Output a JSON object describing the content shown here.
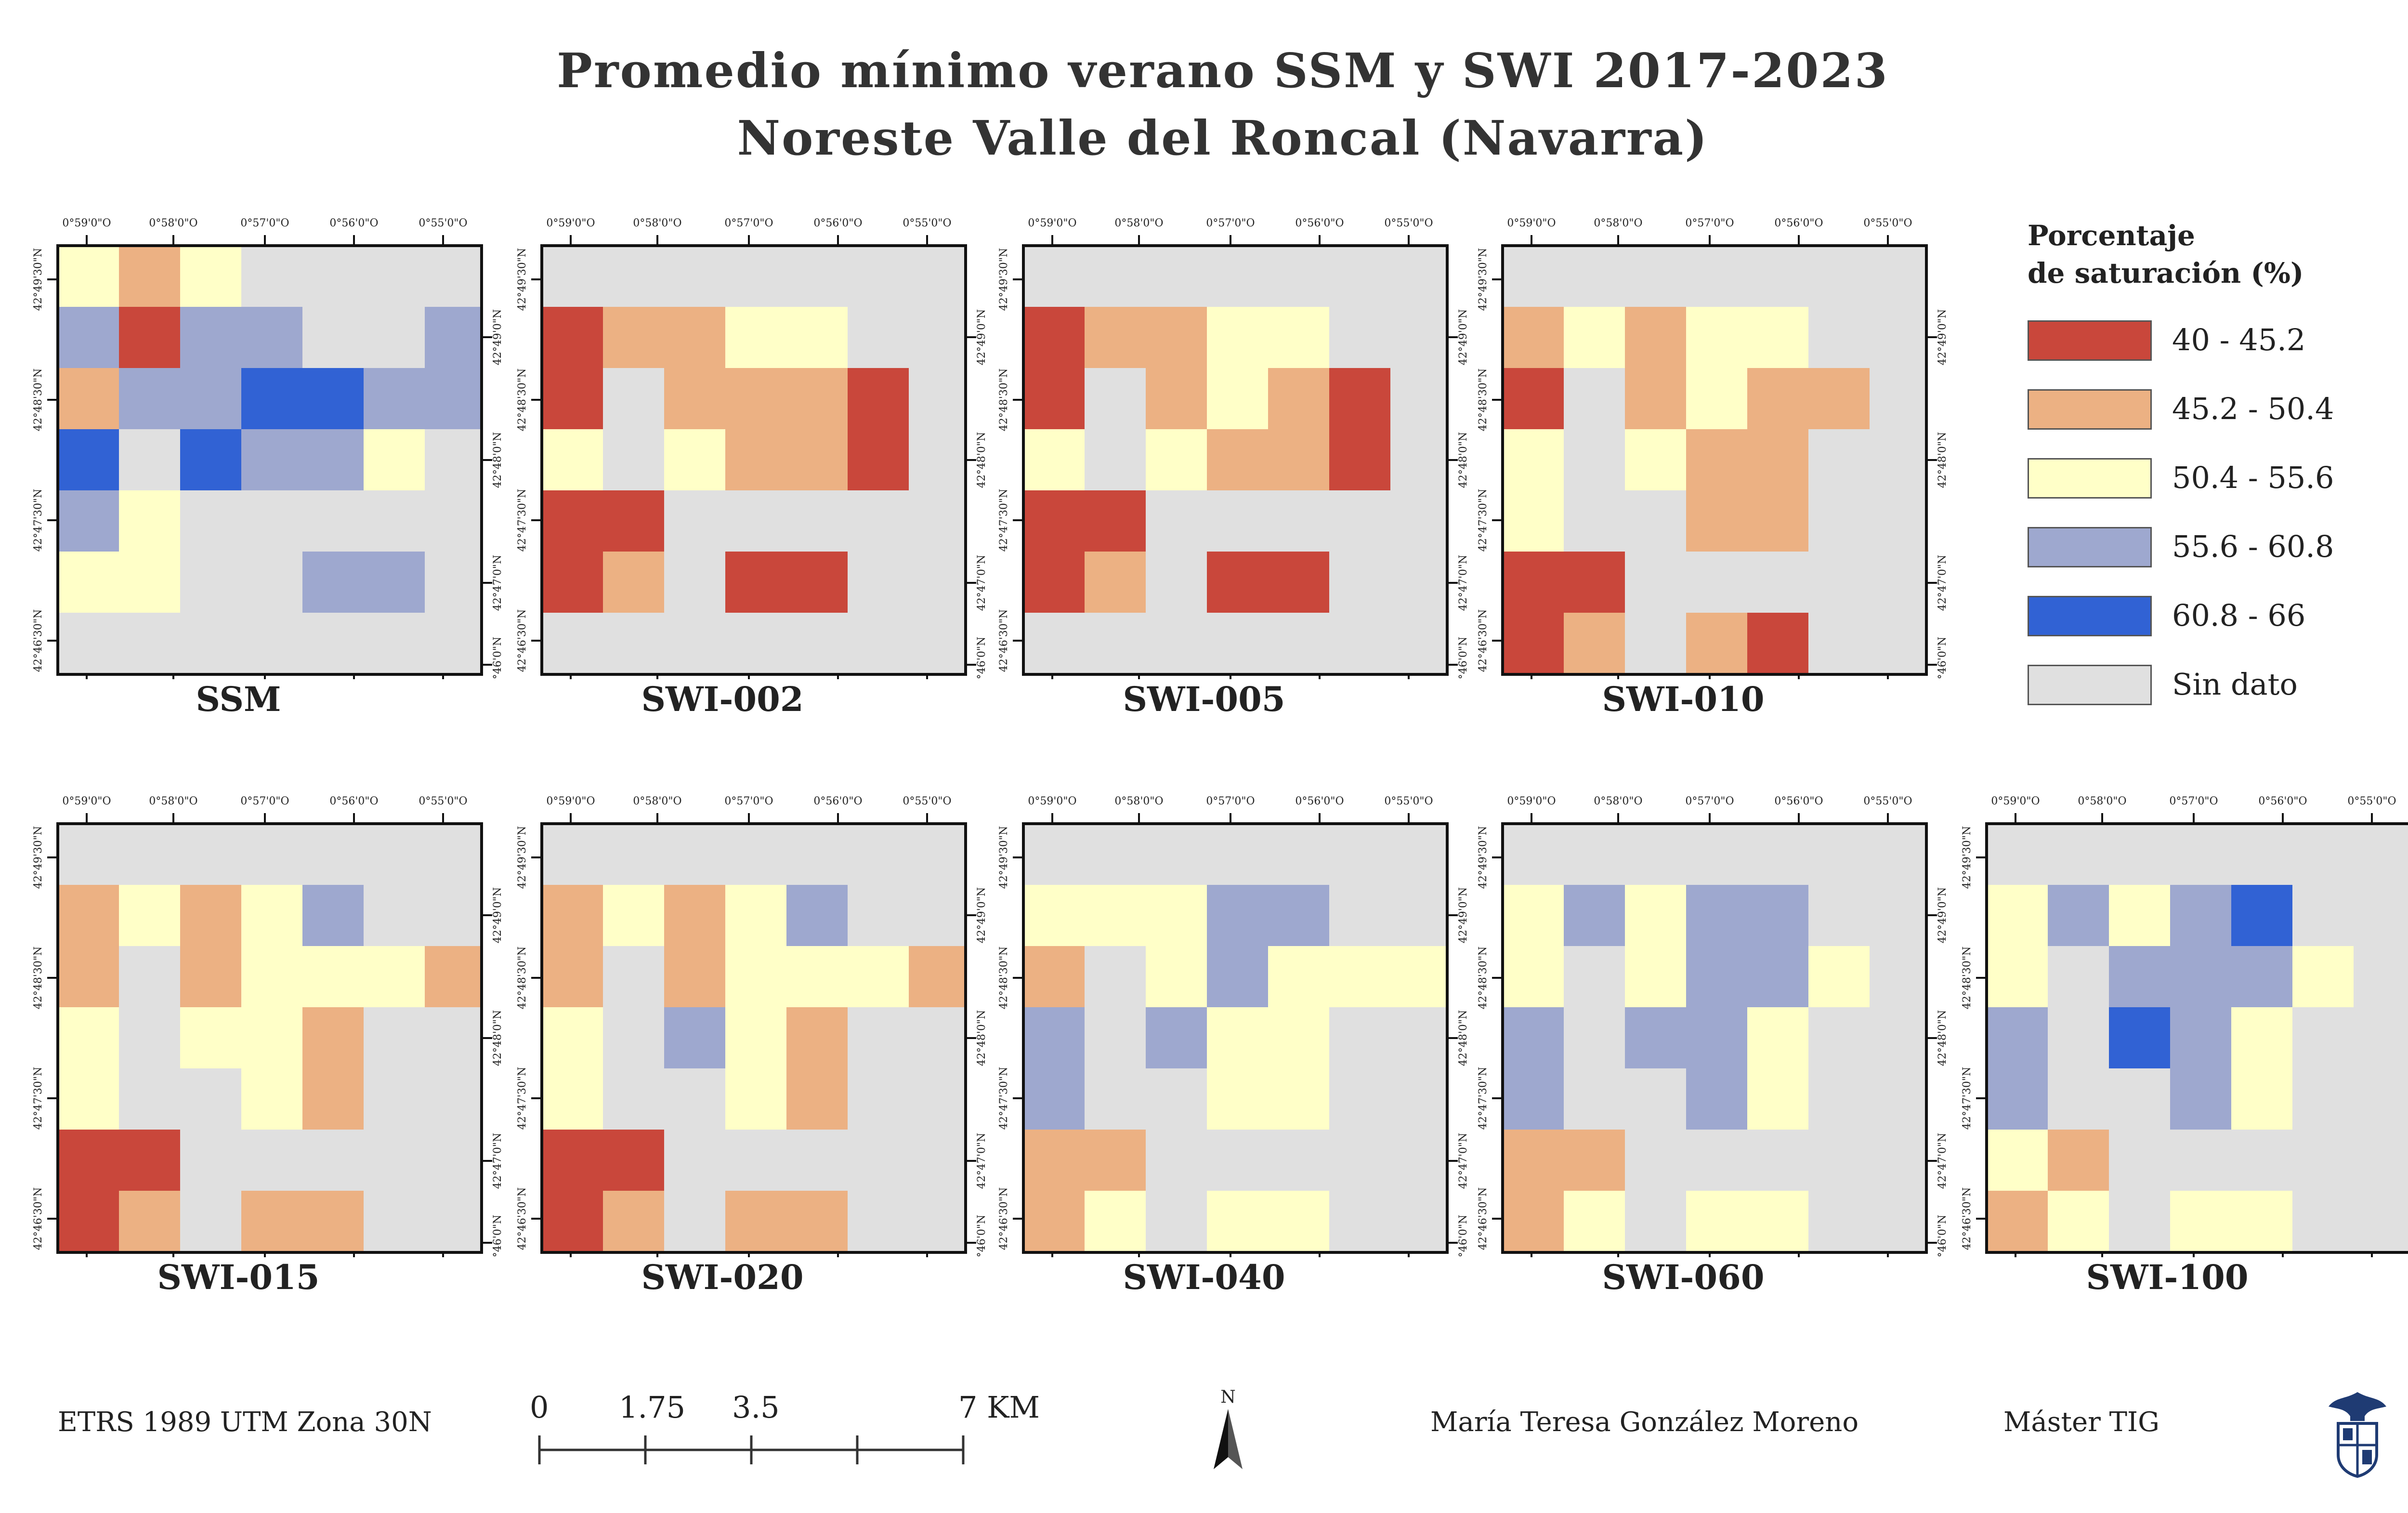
{
  "title": {
    "line1": "Promedio mínimo verano SSM y SWI 2017-2023",
    "line2": "Noreste Valle del Roncal (Navarra)"
  },
  "ticks": {
    "lon": [
      "0°59'0\"O",
      "0°58'0\"O",
      "0°57'0\"O",
      "0°56'0\"O",
      "0°55'0\"O"
    ],
    "lat_left": [
      "42°49'30\"N",
      "42°48'30\"N",
      "42°47'30\"N",
      "42°46'30\"N"
    ],
    "lat_right": [
      "42°49'0\"N",
      "42°48'0\"N",
      "42°47'0\"N",
      "42°46'0\"N"
    ]
  },
  "legend": {
    "title_line1": "Porcentaje",
    "title_line2": "de saturación (%)",
    "classes": [
      {
        "label": "40 - 45.2",
        "color": "#c9473b"
      },
      {
        "label": "45.2 - 50.4",
        "color": "#ecb183"
      },
      {
        "label": "50.4 - 55.6",
        "color": "#ffffc8"
      },
      {
        "label": "55.6 - 60.8",
        "color": "#9ea8cf"
      },
      {
        "label": "60.8 - 66",
        "color": "#3162d4"
      },
      {
        "label": "Sin dato",
        "color": "#e0e0e0"
      }
    ]
  },
  "maps": [
    {
      "name": "SSM",
      "grid": [
        "32300000",
        "41440044",
        "24455443",
        "50544300",
        "43000000",
        "33004400",
        "00000000"
      ]
    },
    {
      "name": "SWI-002",
      "grid": [
        "00000000",
        "12233000",
        "10222100",
        "30322100",
        "11000000",
        "12011000",
        "00000000"
      ]
    },
    {
      "name": "SWI-005",
      "grid": [
        "00000000",
        "12233000",
        "10232100",
        "30322100",
        "11000000",
        "12011000",
        "00000000"
      ]
    },
    {
      "name": "SWI-010",
      "grid": [
        "00000000",
        "23233000",
        "10232200",
        "30322000",
        "30022000",
        "11000000",
        "12021000"
      ]
    },
    {
      "name": "SWI-015",
      "grid": [
        "00000000",
        "23234000",
        "20233320",
        "30332000",
        "30032000",
        "11000000",
        "12022000"
      ]
    },
    {
      "name": "SWI-020",
      "grid": [
        "00000000",
        "23234000",
        "20233320",
        "30432000",
        "30032000",
        "11000000",
        "12022000"
      ]
    },
    {
      "name": "SWI-040",
      "grid": [
        "00000000",
        "33344000",
        "20343330",
        "40433000",
        "40033000",
        "22000000",
        "23033000"
      ]
    },
    {
      "name": "SWI-060",
      "grid": [
        "00000000",
        "34344000",
        "30344300",
        "40443000",
        "40043000",
        "22000000",
        "23033000"
      ]
    },
    {
      "name": "SWI-100",
      "grid": [
        "00000000",
        "34345000",
        "30444300",
        "40543000",
        "40043000",
        "32000000",
        "23033000"
      ]
    }
  ],
  "footer": {
    "crs": "ETRS 1989 UTM Zona 30N",
    "author": "María Teresa González Moreno",
    "program": "Máster TIG",
    "north_label": "N",
    "scale_labels": [
      "0",
      "1.75",
      "3.5",
      "7 KM"
    ]
  }
}
